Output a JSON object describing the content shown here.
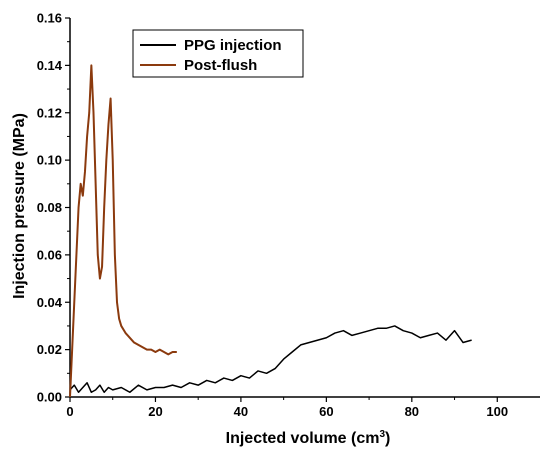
{
  "chart_data": {
    "type": "line",
    "xlabel": "Injected volume (cm",
    "xlabel_sup": "3",
    "xlabel_end": ")",
    "ylabel": "Injection pressure (MPa)",
    "xlim": [
      0,
      110
    ],
    "ylim": [
      0,
      0.16
    ],
    "x_ticks": [
      0,
      20,
      40,
      60,
      80,
      100
    ],
    "x_tick_labels": [
      "0",
      "20",
      "40",
      "60",
      "80",
      "100"
    ],
    "y_ticks": [
      0.0,
      0.02,
      0.04,
      0.06,
      0.08,
      0.1,
      0.12,
      0.14,
      0.16
    ],
    "y_tick_labels": [
      "0.00",
      "0.02",
      "0.04",
      "0.06",
      "0.08",
      "0.10",
      "0.12",
      "0.14",
      "0.16"
    ],
    "grid": false,
    "legend_position": "top-center",
    "series": [
      {
        "name": "PPG injection",
        "color": "#000000",
        "x": [
          0,
          1,
          2,
          3,
          4,
          5,
          6,
          7,
          8,
          9,
          10,
          12,
          14,
          16,
          18,
          20,
          22,
          24,
          26,
          28,
          30,
          32,
          34,
          36,
          38,
          40,
          42,
          44,
          46,
          48,
          50,
          52,
          54,
          56,
          58,
          60,
          62,
          64,
          66,
          68,
          70,
          72,
          74,
          76,
          78,
          80,
          82,
          84,
          86,
          88,
          90,
          92,
          94
        ],
        "y": [
          0.003,
          0.005,
          0.002,
          0.004,
          0.006,
          0.002,
          0.003,
          0.005,
          0.002,
          0.004,
          0.003,
          0.004,
          0.002,
          0.005,
          0.003,
          0.004,
          0.004,
          0.005,
          0.004,
          0.006,
          0.005,
          0.007,
          0.006,
          0.008,
          0.007,
          0.009,
          0.008,
          0.011,
          0.01,
          0.012,
          0.016,
          0.019,
          0.022,
          0.023,
          0.024,
          0.025,
          0.027,
          0.028,
          0.026,
          0.027,
          0.028,
          0.029,
          0.029,
          0.03,
          0.028,
          0.027,
          0.025,
          0.026,
          0.027,
          0.024,
          0.028,
          0.023,
          0.024
        ]
      },
      {
        "name": "Post-flush",
        "color": "#8b3a0e",
        "x": [
          0,
          0.5,
          1,
          1.5,
          2,
          2.5,
          3,
          3.5,
          4,
          4.5,
          5,
          5.5,
          6,
          6.5,
          7,
          7.5,
          8,
          8.5,
          9,
          9.5,
          10,
          10.5,
          11,
          11.5,
          12,
          13,
          14,
          15,
          16,
          17,
          18,
          19,
          20,
          21,
          22,
          23,
          24,
          25
        ],
        "y": [
          0.0,
          0.02,
          0.04,
          0.06,
          0.08,
          0.09,
          0.085,
          0.095,
          0.11,
          0.12,
          0.14,
          0.12,
          0.09,
          0.06,
          0.05,
          0.055,
          0.08,
          0.1,
          0.115,
          0.126,
          0.1,
          0.06,
          0.04,
          0.033,
          0.03,
          0.027,
          0.025,
          0.023,
          0.022,
          0.021,
          0.02,
          0.02,
          0.019,
          0.02,
          0.019,
          0.018,
          0.019,
          0.019
        ]
      }
    ]
  }
}
